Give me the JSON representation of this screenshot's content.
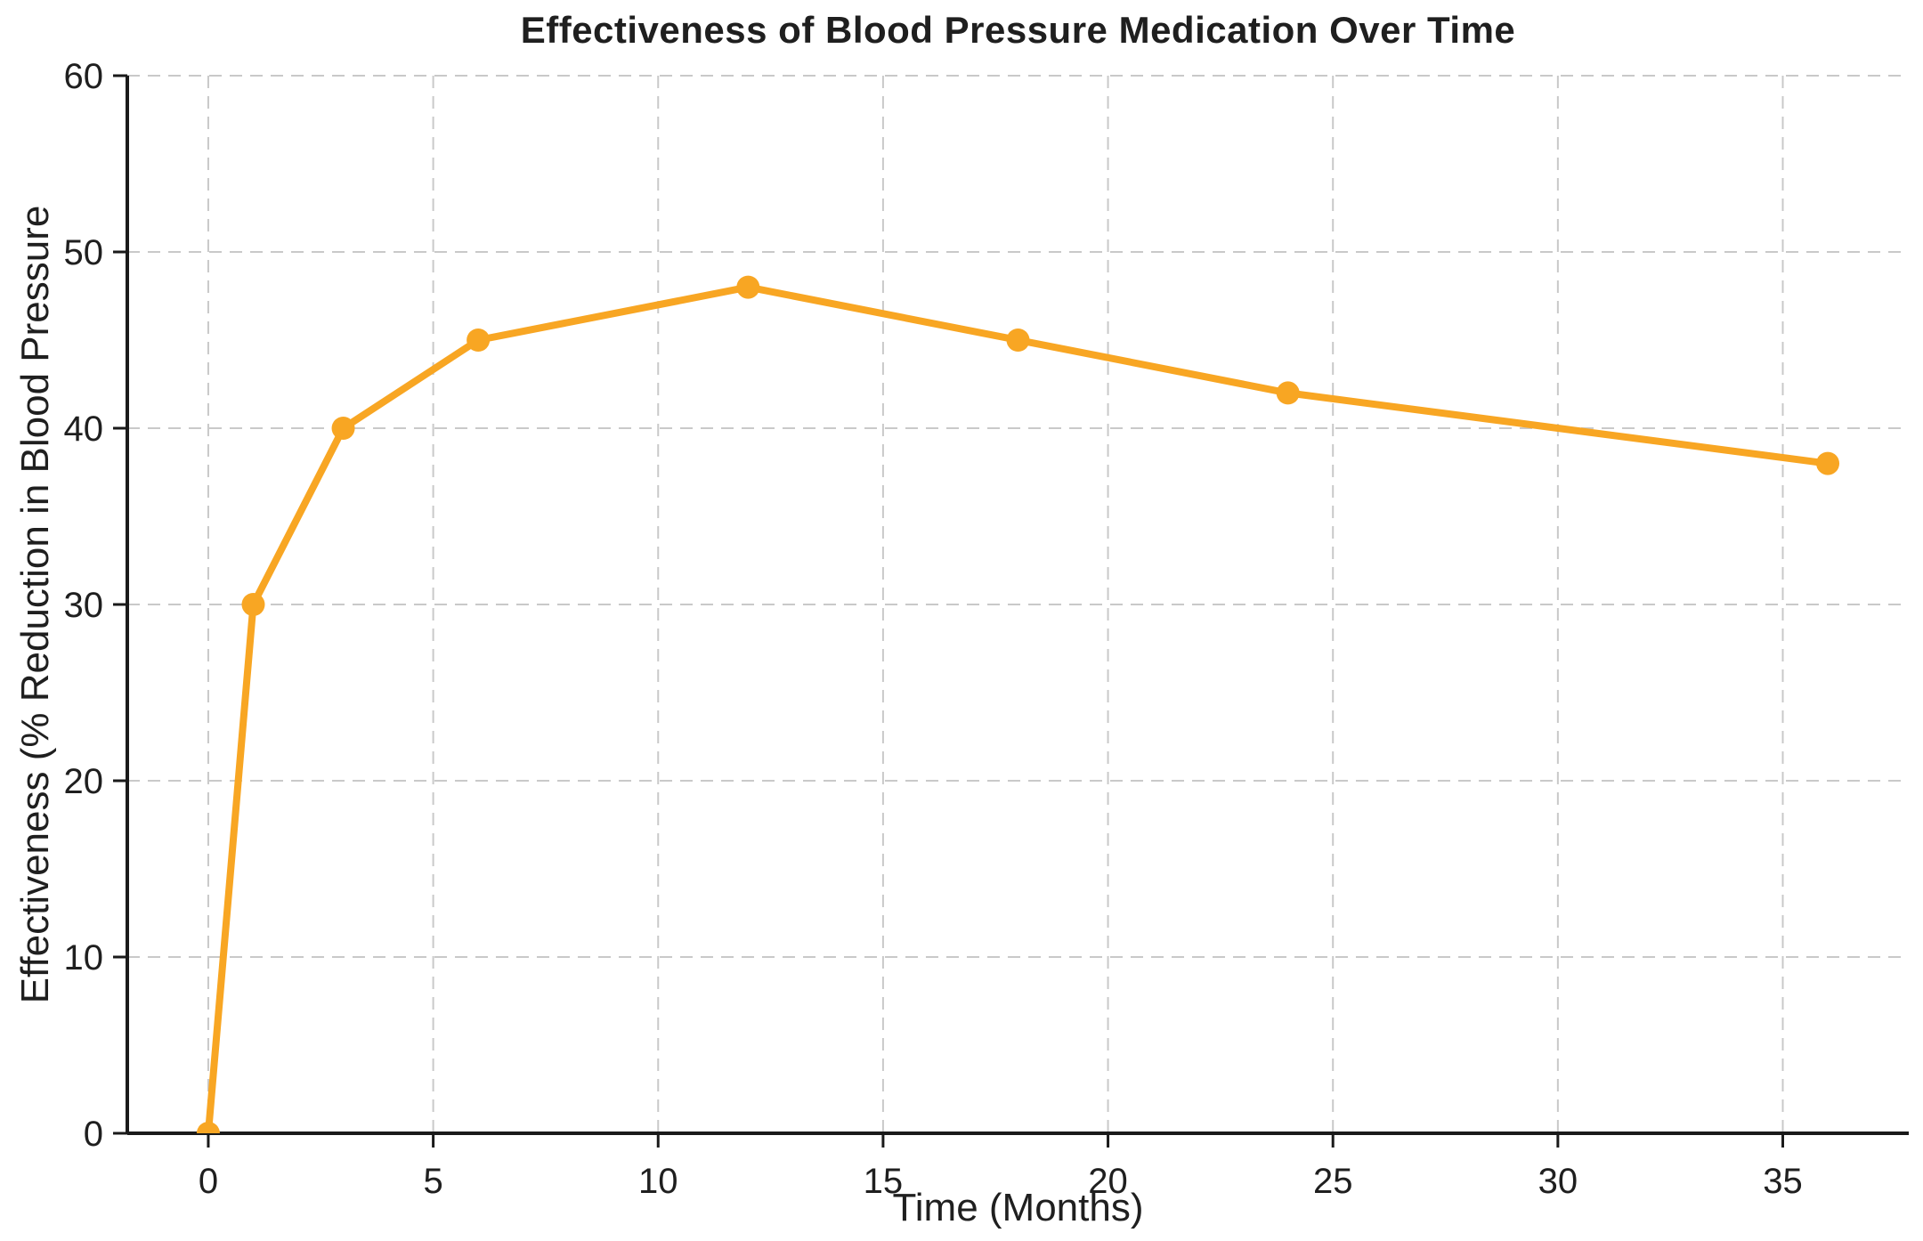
{
  "page": {
    "background": "#ffffff"
  },
  "chart_data": {
    "type": "line",
    "title": "Effectiveness of Blood Pressure Medication Over Time",
    "xlabel": "Time (Months)",
    "ylabel": "Effectiveness (% Reduction in Blood Pressure",
    "x": [
      0,
      1,
      3,
      6,
      12,
      18,
      24,
      36
    ],
    "y": [
      0,
      30,
      40,
      45,
      48,
      45,
      42,
      38
    ],
    "xlim": [
      -1.8,
      37.8
    ],
    "ylim": [
      0,
      60
    ],
    "xticks": [
      0,
      5,
      10,
      15,
      20,
      25,
      30,
      35
    ],
    "yticks": [
      0,
      10,
      20,
      30,
      40,
      50,
      60
    ],
    "grid": true,
    "grid_style": "dashed",
    "legend_position": "none",
    "marker": "circle",
    "colors": {
      "line": "#F8A623",
      "grid": "#C9C9C9",
      "spine": "#1A1A1A",
      "text": "#1F1F1F"
    }
  }
}
